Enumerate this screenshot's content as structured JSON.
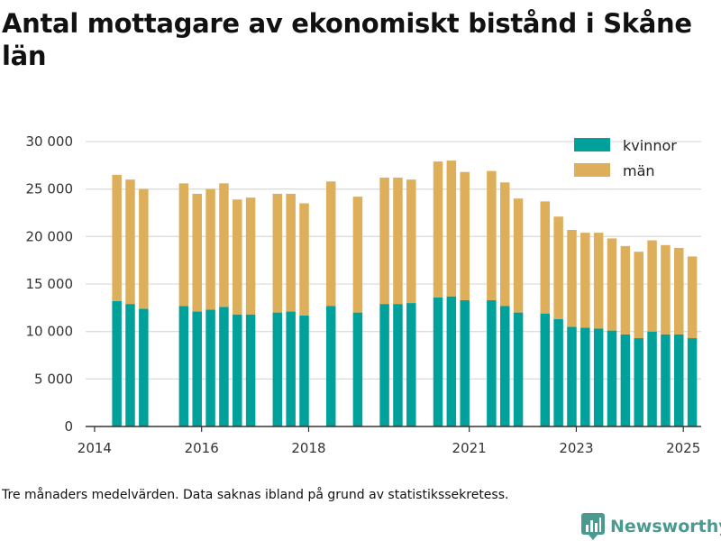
{
  "brand": {
    "name": "Newsworthy",
    "icon": "bar-chart-badge-icon",
    "color": "#4a9a90"
  },
  "footnote": "Tre månaders medelvärden. Data saknas ibland på grund av statistikssekretess.",
  "chart_data": {
    "type": "bar",
    "stacked": true,
    "title": "Antal mottagare av ekonomiskt bistånd i Skåne län",
    "xlabel": "",
    "ylabel": "",
    "ylim": [
      0,
      30000
    ],
    "yticks": [
      {
        "value": 0,
        "label": "0"
      },
      {
        "value": 5000,
        "label": "5 000"
      },
      {
        "value": 10000,
        "label": "10 000"
      },
      {
        "value": 15000,
        "label": "15 000"
      },
      {
        "value": 20000,
        "label": "20 000"
      },
      {
        "value": 25000,
        "label": "25 000"
      },
      {
        "value": 30000,
        "label": "30 000"
      }
    ],
    "xlim": [
      "2013-11",
      "2025-05"
    ],
    "xticks": [
      {
        "value": "2014-01",
        "label": "2014"
      },
      {
        "value": "2016-01",
        "label": "2016"
      },
      {
        "value": "2018-01",
        "label": "2018"
      },
      {
        "value": "2021-01",
        "label": "2021"
      },
      {
        "value": "2023-01",
        "label": "2023"
      },
      {
        "value": "2025-01",
        "label": "2025"
      }
    ],
    "grid": true,
    "legend_position": "top-right",
    "x": [
      "2014-06",
      "2014-09",
      "2014-12",
      "2015-09",
      "2015-12",
      "2016-03",
      "2016-06",
      "2016-09",
      "2016-12",
      "2017-06",
      "2017-09",
      "2017-12",
      "2018-06",
      "2018-12",
      "2019-06",
      "2019-09",
      "2019-12",
      "2020-06",
      "2020-09",
      "2020-12",
      "2021-06",
      "2021-09",
      "2021-12",
      "2022-06",
      "2022-09",
      "2022-12",
      "2023-03",
      "2023-06",
      "2023-09",
      "2023-12",
      "2024-03",
      "2024-06",
      "2024-09",
      "2024-12",
      "2025-03"
    ],
    "series": [
      {
        "name": "kvinnor",
        "color": "#00a19a",
        "values": [
          13200,
          12900,
          12400,
          12700,
          12100,
          12300,
          12600,
          11800,
          11800,
          12000,
          12100,
          11700,
          12700,
          12000,
          12900,
          12900,
          13000,
          13600,
          13700,
          13300,
          13300,
          12700,
          12000,
          11900,
          11300,
          10500,
          10400,
          10300,
          10100,
          9700,
          9300,
          10000,
          9700,
          9700,
          9300
        ]
      },
      {
        "name": "män",
        "color": "#ddaf5b",
        "values": [
          13300,
          13100,
          12600,
          12900,
          12400,
          12700,
          13000,
          12100,
          12300,
          12500,
          12400,
          11800,
          13100,
          12200,
          13300,
          13300,
          13000,
          14300,
          14300,
          13500,
          13600,
          13000,
          12000,
          11800,
          10800,
          10200,
          10000,
          10100,
          9700,
          9300,
          9100,
          9600,
          9400,
          9100,
          8600
        ]
      }
    ]
  }
}
